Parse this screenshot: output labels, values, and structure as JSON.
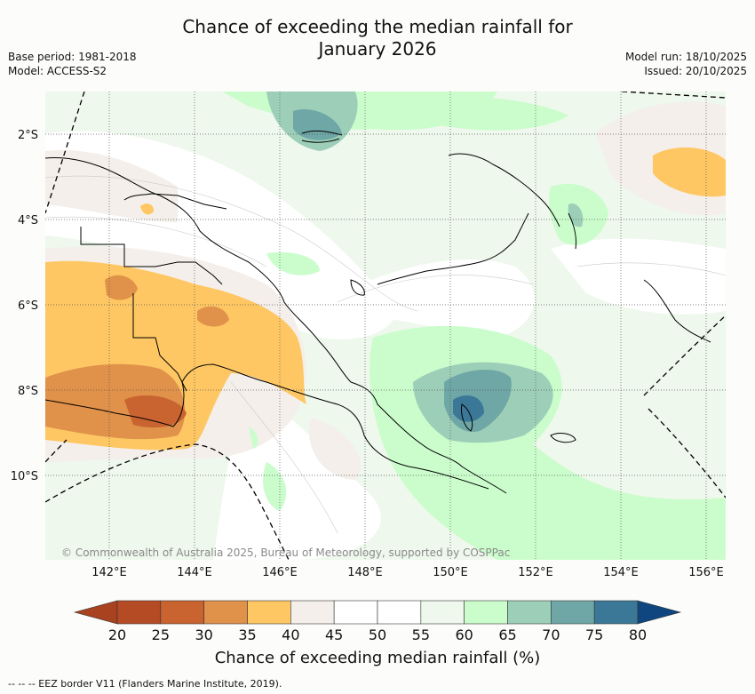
{
  "title_line1": "Chance of exceeding the median rainfall for",
  "title_line2": "January 2026",
  "meta_left": [
    "Base period: 1981-2018",
    "Model: ACCESS-S2"
  ],
  "meta_right": [
    "Model run: 18/10/2025",
    "Issued: 20/10/2025"
  ],
  "copyright": "© Commonwealth of Australia 2025, Bureau of Meteorology, supported by COSPPac",
  "lat_labels": [
    "2°S",
    "4°S",
    "6°S",
    "8°S",
    "10°S"
  ],
  "lon_labels": [
    "142°E",
    "144°E",
    "146°E",
    "148°E",
    "150°E",
    "152°E",
    "154°E",
    "156°E"
  ],
  "colorbar": {
    "title": "Chance of exceeding median rainfall (%)",
    "ticks": [
      "20",
      "25",
      "30",
      "35",
      "40",
      "45",
      "50",
      "55",
      "60",
      "65",
      "70",
      "75",
      "80"
    ],
    "colors": [
      "#a8421f",
      "#b44b24",
      "#c96330",
      "#e0914a",
      "#fec763",
      "#f4efea",
      "#ffffff",
      "#ffffff",
      "#eef8ec",
      "#cbfdcc",
      "#9dcfb8",
      "#6ea7a5",
      "#3b7898",
      "#0f4680"
    ]
  },
  "footer": "--  --  -- EEZ border V11 (Flanders Marine Institute, 2019)."
}
